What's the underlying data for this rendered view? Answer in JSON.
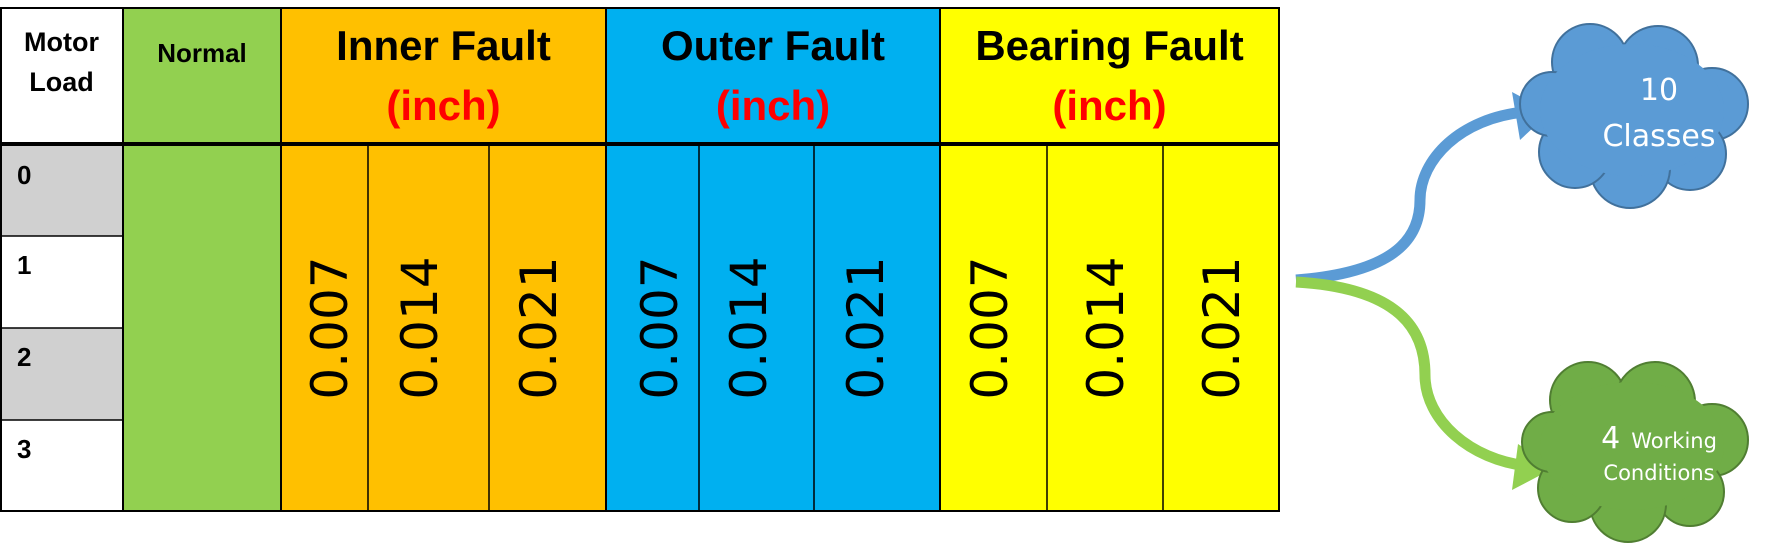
{
  "header": {
    "motor_load": "Motor\nLoad",
    "normal": "Normal",
    "inner_fault": "Inner Fault",
    "outer_fault": "Outer Fault",
    "bearing_fault": "Bearing Fault",
    "unit": "(inch)"
  },
  "loads": [
    "0",
    "1",
    "2",
    "3"
  ],
  "sizes": {
    "inner": [
      "0.007",
      "0.014",
      "0.021"
    ],
    "outer": [
      "0.007",
      "0.014",
      "0.021"
    ],
    "bearing": [
      "0.007",
      "0.014",
      "0.021"
    ]
  },
  "clouds": {
    "classes_count": "10",
    "classes_label": "Classes",
    "conditions_count": "4",
    "conditions_word": "Working",
    "conditions_label": "Conditions"
  },
  "colors": {
    "normal": "#92D050",
    "inner": "#FFC000",
    "outer": "#00B0F0",
    "bearing": "#FFFF00",
    "load_gray": "#D0D0D0",
    "unit_red": "#FF0000",
    "cloud_blue": "#5B9BD5",
    "cloud_green": "#70AD47",
    "arrow_green": "#92D050"
  }
}
